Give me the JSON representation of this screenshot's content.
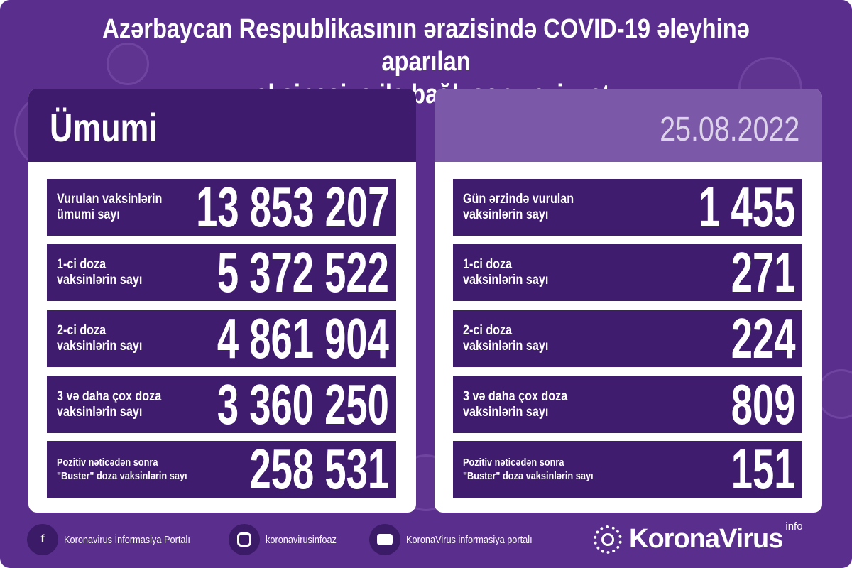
{
  "title": {
    "line1": "Azərbaycan Respublikasının ərazisində COVID-19 əleyhinə aparılan",
    "line2": "vaksinasiya ilə bağlı son vəziyyət"
  },
  "left": {
    "header": "Ümumi",
    "rows": [
      {
        "l1": "Vurulan vaksinlərin",
        "l2": "ümumi sayı",
        "value": "13 853 207"
      },
      {
        "l1": "1-ci doza",
        "l2": "vaksinlərin sayı",
        "value": "5 372 522"
      },
      {
        "l1": "2-ci doza",
        "l2": "vaksinlərin sayı",
        "value": "4 861 904"
      },
      {
        "l1": "3 və daha çox doza",
        "l2": "vaksinlərin sayı",
        "value": "3 360 250"
      },
      {
        "l1": "Pozitiv nəticədən sonra",
        "l2": "\"Buster\" doza vaksinlərin sayı",
        "value": "258 531"
      }
    ]
  },
  "right": {
    "date": "25.08.2022",
    "rows": [
      {
        "l1": "Gün ərzində vurulan",
        "l2": "vaksinlərin sayı",
        "value": "1 455"
      },
      {
        "l1": "1-ci doza",
        "l2": "vaksinlərin sayı",
        "value": "271"
      },
      {
        "l1": "2-ci doza",
        "l2": "vaksinlərin sayı",
        "value": "224"
      },
      {
        "l1": "3 və daha çox doza",
        "l2": "vaksinlərin sayı",
        "value": "809"
      },
      {
        "l1": "Pozitiv nəticədən sonra",
        "l2": "\"Buster\" doza vaksinlərin sayı",
        "value": "151"
      }
    ]
  },
  "footer": {
    "facebook": "Koronavirus İnformasiya Portalı",
    "instagram": "koronavirusinfoaz",
    "youtube": "KoronaVirus informasiya portalı",
    "brand": "KoronaVirus",
    "brand_sup": "info"
  },
  "colors": {
    "background": "#5a2e8c",
    "row": "#3f1c6e",
    "date_header": "#7c59a8"
  }
}
